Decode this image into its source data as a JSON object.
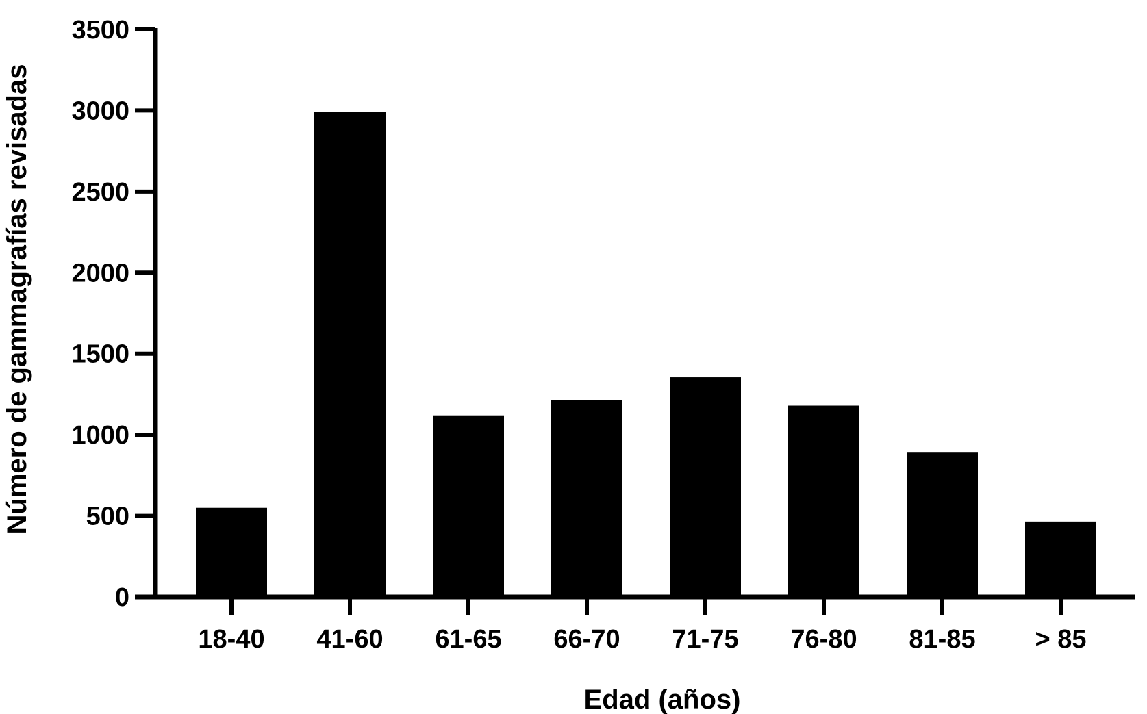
{
  "chart_data": {
    "type": "bar",
    "title": "",
    "xlabel": "Edad (años)",
    "ylabel": "Número de gammagrafías revisadas",
    "categories": [
      "18-40",
      "41-60",
      "61-65",
      "66-70",
      "71-75",
      "76-80",
      "81-85",
      "> 85"
    ],
    "values": [
      550,
      2990,
      1120,
      1215,
      1355,
      1180,
      890,
      465
    ],
    "ylim": [
      0,
      3500
    ],
    "yticks": [
      "0",
      "500",
      "1000",
      "1500",
      "2000",
      "2500",
      "3000",
      "3500"
    ],
    "grid": false,
    "bar_color": "#000000"
  }
}
